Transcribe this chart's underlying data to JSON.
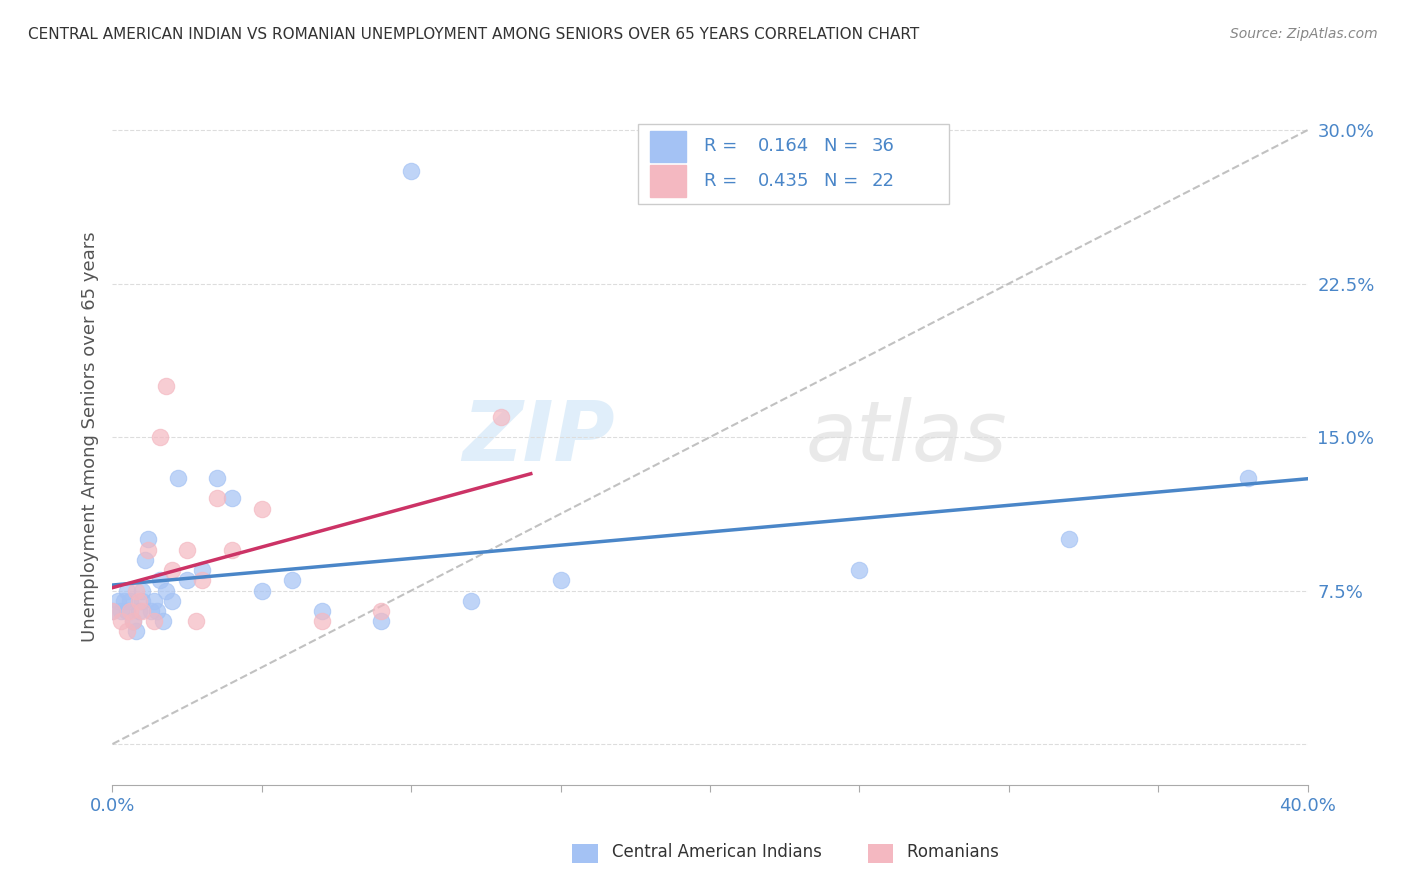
{
  "title": "CENTRAL AMERICAN INDIAN VS ROMANIAN UNEMPLOYMENT AMONG SENIORS OVER 65 YEARS CORRELATION CHART",
  "source": "Source: ZipAtlas.com",
  "ylabel": "Unemployment Among Seniors over 65 years",
  "xlim": [
    0,
    0.4
  ],
  "ylim": [
    -0.02,
    0.32
  ],
  "yticks": [
    0.0,
    0.075,
    0.15,
    0.225,
    0.3
  ],
  "ytick_labels": [
    "",
    "7.5%",
    "15.0%",
    "22.5%",
    "30.0%"
  ],
  "xticks": [
    0.0,
    0.05,
    0.1,
    0.15,
    0.2,
    0.25,
    0.3,
    0.35,
    0.4
  ],
  "xtick_labels": [
    "0.0%",
    "",
    "",
    "",
    "",
    "",
    "",
    "",
    "40.0%"
  ],
  "blue_color": "#a4c2f4",
  "pink_color": "#f4b8c1",
  "blue_line_color": "#4a86c8",
  "pink_line_color": "#cc3366",
  "diag_line_color": "#bbbbbb",
  "background_color": "#ffffff",
  "watermark_zip": "ZIP",
  "watermark_atlas": "atlas",
  "legend_box_color": "#f8f8f8",
  "legend_border_color": "#cccccc",
  "text_color": "#4a86c8",
  "label_color": "#333333",
  "central_american_x": [
    0.0,
    0.002,
    0.003,
    0.004,
    0.005,
    0.005,
    0.006,
    0.007,
    0.008,
    0.009,
    0.01,
    0.01,
    0.011,
    0.012,
    0.013,
    0.014,
    0.015,
    0.016,
    0.017,
    0.018,
    0.02,
    0.022,
    0.025,
    0.03,
    0.035,
    0.04,
    0.05,
    0.06,
    0.07,
    0.09,
    0.1,
    0.12,
    0.15,
    0.25,
    0.32,
    0.38
  ],
  "central_american_y": [
    0.065,
    0.07,
    0.065,
    0.07,
    0.065,
    0.075,
    0.07,
    0.06,
    0.055,
    0.065,
    0.07,
    0.075,
    0.09,
    0.1,
    0.065,
    0.07,
    0.065,
    0.08,
    0.06,
    0.075,
    0.07,
    0.13,
    0.08,
    0.085,
    0.13,
    0.12,
    0.075,
    0.08,
    0.065,
    0.06,
    0.28,
    0.07,
    0.08,
    0.085,
    0.1,
    0.13
  ],
  "romanian_x": [
    0.0,
    0.003,
    0.005,
    0.006,
    0.007,
    0.008,
    0.009,
    0.01,
    0.012,
    0.014,
    0.016,
    0.018,
    0.02,
    0.025,
    0.028,
    0.03,
    0.035,
    0.04,
    0.05,
    0.07,
    0.09,
    0.13
  ],
  "romanian_y": [
    0.065,
    0.06,
    0.055,
    0.065,
    0.06,
    0.075,
    0.07,
    0.065,
    0.095,
    0.06,
    0.15,
    0.175,
    0.085,
    0.095,
    0.06,
    0.08,
    0.12,
    0.095,
    0.115,
    0.06,
    0.065,
    0.16
  ]
}
